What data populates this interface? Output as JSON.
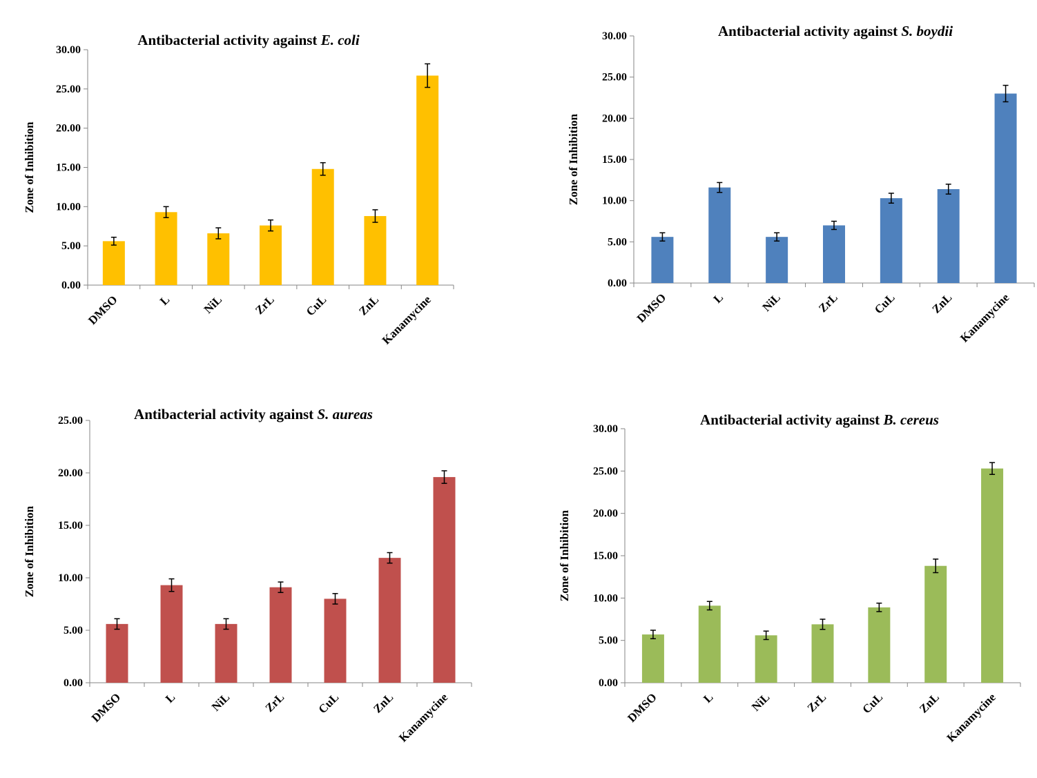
{
  "chart_data": [
    {
      "type": "bar",
      "title_prefix": "Antibacterial activity against ",
      "title_italic": "E. coli",
      "ylabel": "Zone of Inhibition",
      "xlabel": "",
      "categories": [
        "DMSO",
        "L",
        "NiL",
        "ZrL",
        "CuL",
        "ZnL",
        "Kanamycine"
      ],
      "values": [
        5.6,
        9.3,
        6.6,
        7.6,
        14.8,
        8.8,
        26.7
      ],
      "errors": [
        0.5,
        0.7,
        0.7,
        0.7,
        0.8,
        0.8,
        1.5
      ],
      "ylim": [
        0,
        30
      ],
      "yticks": [
        "0.00",
        "5.00",
        "10.00",
        "15.00",
        "20.00",
        "25.00",
        "30.00"
      ],
      "color": "#FFC000",
      "grid": false,
      "legend": "none"
    },
    {
      "type": "bar",
      "title_prefix": "Antibacterial activity against ",
      "title_italic": "S. boydii",
      "ylabel": "Zone of Inhibition",
      "xlabel": "",
      "categories": [
        "DMSO",
        "L",
        "NiL",
        "ZrL",
        "CuL",
        "ZnL",
        "Kanamycine"
      ],
      "values": [
        5.6,
        11.6,
        5.6,
        7.0,
        10.3,
        11.4,
        23.0
      ],
      "errors": [
        0.5,
        0.6,
        0.5,
        0.5,
        0.6,
        0.6,
        1.0
      ],
      "ylim": [
        0,
        30
      ],
      "yticks": [
        "0.00",
        "5.00",
        "10.00",
        "15.00",
        "20.00",
        "25.00",
        "30.00"
      ],
      "color": "#4F81BD",
      "grid": false,
      "legend": "none"
    },
    {
      "type": "bar",
      "title_prefix": "Antibacterial activity against ",
      "title_italic": "S. aureas",
      "ylabel": "Zone of Inhibition",
      "xlabel": "",
      "categories": [
        "DMSO",
        "L",
        "NiL",
        "ZrL",
        "CuL",
        "ZnL",
        "Kanamycine"
      ],
      "values": [
        5.6,
        9.3,
        5.6,
        9.1,
        8.0,
        11.9,
        19.6
      ],
      "errors": [
        0.5,
        0.6,
        0.5,
        0.5,
        0.5,
        0.5,
        0.6
      ],
      "ylim": [
        0,
        25
      ],
      "yticks": [
        "0.00",
        "5.00",
        "10.00",
        "15.00",
        "20.00",
        "25.00"
      ],
      "color": "#C0504D",
      "grid": false,
      "legend": "none"
    },
    {
      "type": "bar",
      "title_prefix": "Antibacterial activity against ",
      "title_italic": "B. cereus",
      "ylabel": "Zone of Inhibition",
      "xlabel": "",
      "categories": [
        "DMSO",
        "L",
        "NiL",
        "ZrL",
        "CuL",
        "ZnL",
        "Kanamycine"
      ],
      "values": [
        5.7,
        9.1,
        5.6,
        6.9,
        8.9,
        13.8,
        25.3
      ],
      "errors": [
        0.5,
        0.5,
        0.5,
        0.6,
        0.5,
        0.8,
        0.7
      ],
      "ylim": [
        0,
        30
      ],
      "yticks": [
        "0.00",
        "5.00",
        "10.00",
        "15.00",
        "20.00",
        "25.00",
        "30.00"
      ],
      "color": "#9BBB59",
      "grid": false,
      "legend": "none"
    }
  ]
}
